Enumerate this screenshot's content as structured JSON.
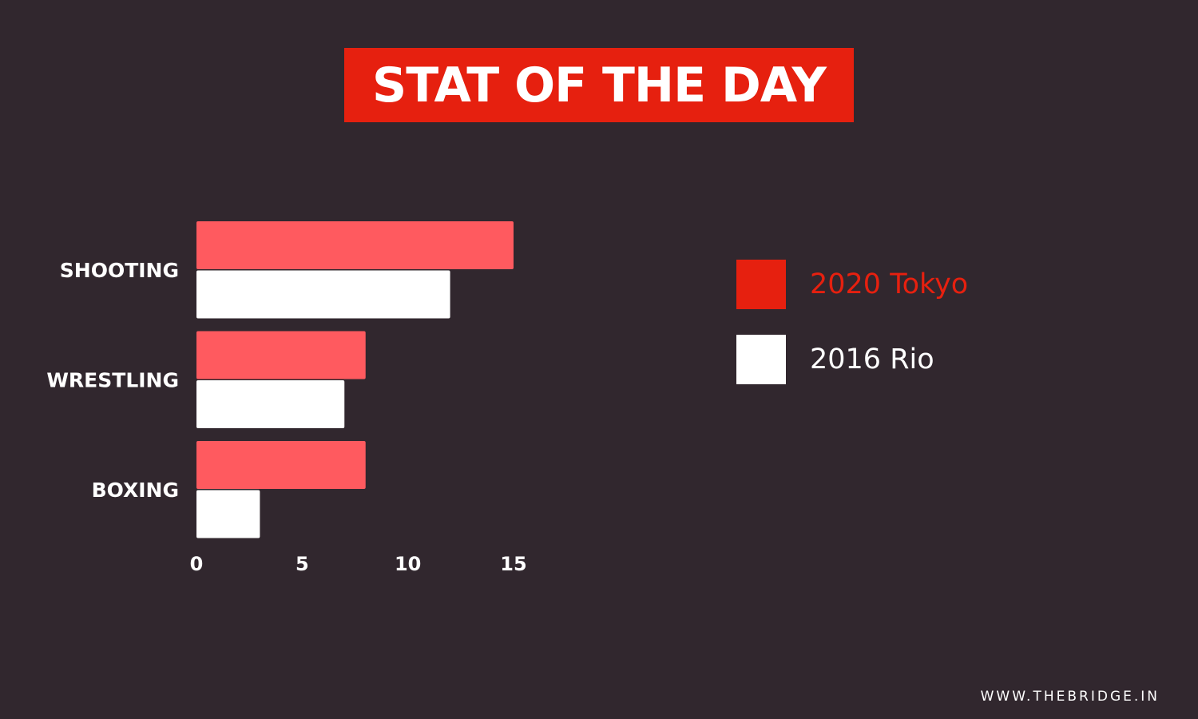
{
  "header": {
    "title": "STAT OF THE DAY"
  },
  "chart_data": {
    "type": "bar",
    "orientation": "horizontal",
    "categories": [
      "SHOOTING",
      "WRESTLING",
      "BOXING"
    ],
    "series": [
      {
        "name": "2020 Tokyo",
        "values": [
          15,
          8,
          8
        ],
        "color": "#ff5a5f"
      },
      {
        "name": "2016 Rio",
        "values": [
          12,
          7,
          3
        ],
        "color": "#ffffff"
      }
    ],
    "xticks": [
      "0",
      "5",
      "10",
      "15"
    ],
    "xlim": [
      0,
      15
    ],
    "grid": false,
    "legend_position": "right"
  },
  "legend": {
    "items": [
      {
        "label": "2020 Tokyo",
        "swatch_color": "#e6200f",
        "text_color": "#e6200f"
      },
      {
        "label": "2016 Rio",
        "swatch_color": "#ffffff",
        "text_color": "#ffffff"
      }
    ]
  },
  "footer": {
    "website": "WWW.THEBRIDGE.IN"
  }
}
